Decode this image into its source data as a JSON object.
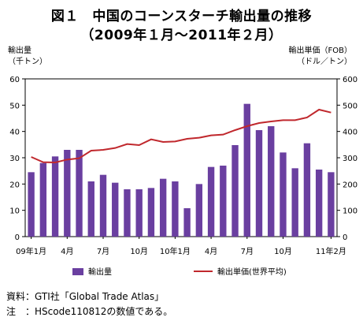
{
  "title": "図１　中国のコーンスターチ輸出量の推移",
  "subtitle": "（2009年１月～2011年２月）",
  "left_axis": {
    "label_line1": "輸出量",
    "label_line2": "（千トン）"
  },
  "right_axis": {
    "label_line1": "輸出単価（FOB）",
    "label_line2": "（ドル／トン）"
  },
  "source_lines": [
    "資料：GTI社「Global Trade Atlas」",
    "注　：HScode110812の数値である。"
  ],
  "chart_data": {
    "type": "bar+line",
    "x_tick_labels": [
      {
        "index": 0,
        "label": "09年1月"
      },
      {
        "index": 3,
        "label": "4月"
      },
      {
        "index": 6,
        "label": "7月"
      },
      {
        "index": 9,
        "label": "10月"
      },
      {
        "index": 12,
        "label": "10年1月"
      },
      {
        "index": 15,
        "label": "4月"
      },
      {
        "index": 18,
        "label": "7月"
      },
      {
        "index": 21,
        "label": "10月"
      },
      {
        "index": 25,
        "label": "11年2月"
      }
    ],
    "categories": [
      "2009-01",
      "2009-02",
      "2009-03",
      "2009-04",
      "2009-05",
      "2009-06",
      "2009-07",
      "2009-08",
      "2009-09",
      "2009-10",
      "2009-11",
      "2009-12",
      "2010-01",
      "2010-02",
      "2010-03",
      "2010-04",
      "2010-05",
      "2010-06",
      "2010-07",
      "2010-08",
      "2010-09",
      "2010-10",
      "2010-11",
      "2010-12",
      "2011-01",
      "2011-02"
    ],
    "y_left": {
      "min": 0,
      "max": 60,
      "ticks": [
        0,
        10,
        20,
        30,
        40,
        50,
        60
      ]
    },
    "y_right": {
      "min": 0,
      "max": 600,
      "ticks": [
        0,
        100,
        200,
        300,
        400,
        500,
        600
      ]
    },
    "series": [
      {
        "name": "輸出量",
        "type": "bar",
        "axis": "left",
        "color": "#6a3fa0",
        "values": [
          24.5,
          28,
          30.5,
          33,
          33,
          21,
          23.5,
          20.5,
          18,
          18,
          18.5,
          22,
          21,
          10.8,
          20,
          26.5,
          27,
          34.8,
          50.5,
          40.5,
          42,
          32,
          26,
          35.5,
          25.5,
          24.5
        ]
      },
      {
        "name": "輸出単価(世界平均)",
        "type": "line",
        "axis": "right",
        "color": "#c0282d",
        "values": [
          303,
          283,
          282,
          293,
          298,
          327,
          330,
          337,
          352,
          348,
          370,
          360,
          362,
          372,
          376,
          385,
          388,
          405,
          420,
          432,
          438,
          443,
          443,
          453,
          483,
          472
        ]
      }
    ],
    "legend": "bottom-center",
    "grid": false
  }
}
